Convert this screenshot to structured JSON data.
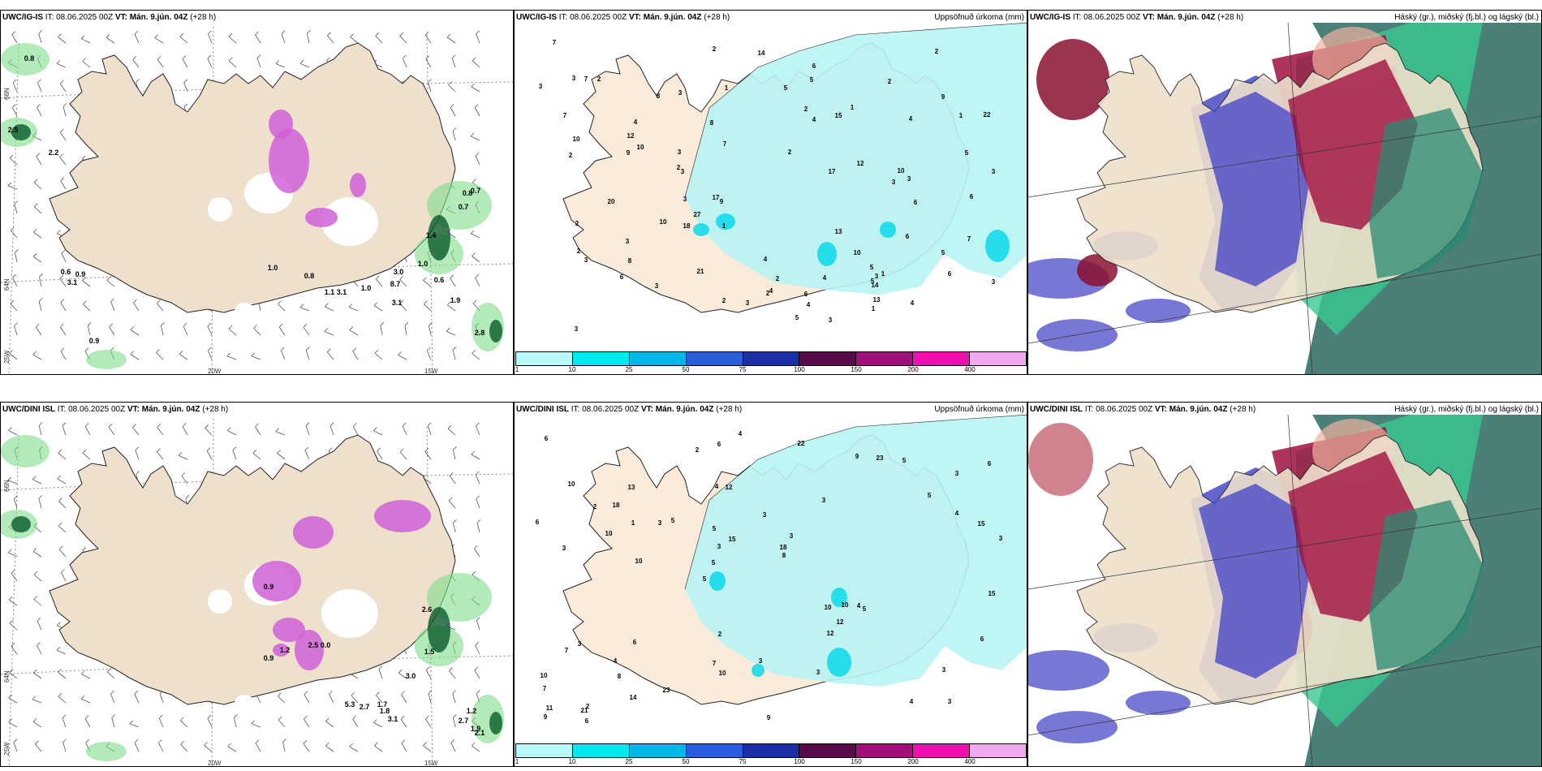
{
  "rows": [
    {
      "model": "UWC/IG-IS",
      "it_label": "IT:",
      "it_value": "08.06.2025 00Z",
      "vt_label": "VT:",
      "vt_value": "Mán. 9.jún. 04Z",
      "lead": "(+28 h)"
    },
    {
      "model": "UWC/DINI ISL",
      "it_label": "IT:",
      "it_value": "08.06.2025 00Z",
      "vt_label": "VT:",
      "vt_value": "Mán. 9.jún. 04Z",
      "lead": "(+28 h)"
    }
  ],
  "precip_title": "Uppsöfnuð úrkoma (mm)",
  "cloud_title": "Háský (gr.), miðský (fj.bl.) og lágský (bl.)",
  "colorbar": {
    "labels": [
      "1",
      "10",
      "25",
      "50",
      "75",
      "100",
      "150",
      "200",
      "400"
    ],
    "colors": [
      "#b8f8f8",
      "#00e8f0",
      "#00b8e8",
      "#2a5ce0",
      "#1c2ea8",
      "#5a0a4a",
      "#a0107a",
      "#f010b0",
      "#f0a8f0"
    ]
  },
  "axis": {
    "lat66": "66N",
    "lat64": "64N",
    "lon25": "25W",
    "lon20": "20W",
    "lon15": "15W"
  },
  "panel1_labels": [
    "0.8",
    "2.5",
    "2.2",
    "0.6",
    "0.9",
    "3.1",
    "0.9",
    "1.0",
    "0.8",
    "1.1",
    "3.1",
    "1.0",
    "3.0",
    "3.1",
    "8.7",
    "0.6",
    "1.9",
    "2.8",
    "0.7",
    "0.8",
    "0.7",
    "1.0",
    "1.4"
  ],
  "panel4_labels": [
    "0.9",
    "0.9",
    "1.2",
    "2.5",
    "0.0",
    "3.0",
    "5.3",
    "2.7",
    "1.7",
    "1.8",
    "3.1",
    "1.2",
    "2.7",
    "1.9",
    "2.1",
    "1.5",
    "2.6"
  ],
  "panel2_labels": [
    "2",
    "2",
    "2",
    "3",
    "3",
    "3",
    "4",
    "2",
    "10",
    "12",
    "3",
    "6",
    "3",
    "3",
    "2",
    "4",
    "5",
    "3",
    "7",
    "3",
    "2",
    "6",
    "9",
    "3",
    "6",
    "3",
    "6",
    "5",
    "3",
    "3",
    "3",
    "10",
    "6",
    "4",
    "5",
    "8",
    "7",
    "1",
    "9",
    "10",
    "3",
    "6",
    "3",
    "2",
    "2",
    "2",
    "10",
    "1",
    "2",
    "1",
    "2",
    "7",
    "17",
    "12",
    "22",
    "21",
    "18",
    "7",
    "15",
    "14",
    "13",
    "4",
    "10",
    "8",
    "5",
    "20",
    "27",
    "4",
    "5",
    "2",
    "1",
    "1",
    "14",
    "17",
    "5",
    "8",
    "9",
    "6",
    "4",
    "3",
    "7",
    "4",
    "13",
    "5",
    "3",
    "2",
    "1",
    "4"
  ],
  "panel5_labels": [
    "3",
    "3",
    "3",
    "5",
    "3",
    "2",
    "4",
    "3",
    "3",
    "5",
    "7",
    "8",
    "12",
    "3",
    "5",
    "10",
    "6",
    "3",
    "10",
    "4",
    "5",
    "7",
    "3",
    "13",
    "9",
    "6",
    "4",
    "3",
    "4",
    "9",
    "3",
    "10",
    "12",
    "14",
    "15",
    "18",
    "11",
    "10",
    "8",
    "7",
    "5",
    "6",
    "12",
    "3",
    "4",
    "6",
    "9",
    "3",
    "5",
    "4",
    "10",
    "6",
    "18",
    "23",
    "21",
    "22",
    "2",
    "15",
    "6",
    "2",
    "23",
    "10",
    "1",
    "10",
    "6",
    "2",
    "15",
    "5"
  ]
}
